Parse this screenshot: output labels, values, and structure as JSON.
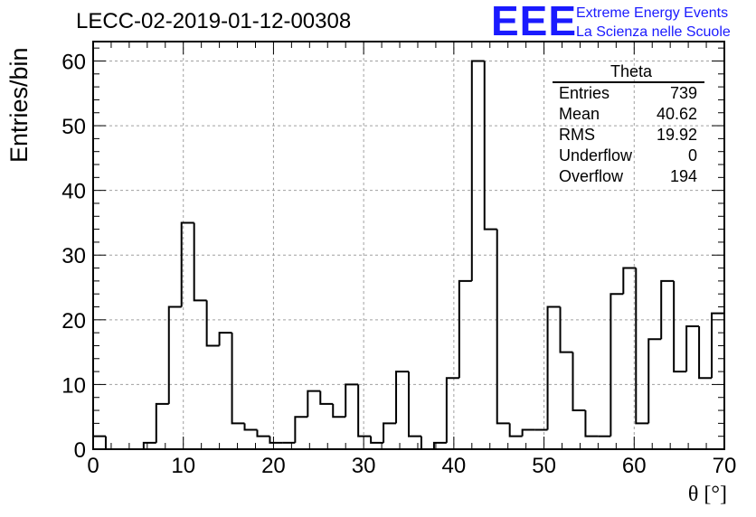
{
  "header": {
    "run_title": "LECC-02-2019-01-12-00308",
    "logo": "EEE",
    "logo_line1": "Extreme Energy Events",
    "logo_line2": "La Scienza nelle Scuole"
  },
  "stats_box": {
    "title": "Theta",
    "rows": [
      {
        "label": "Entries",
        "value": "739"
      },
      {
        "label": "Mean",
        "value": "40.62"
      },
      {
        "label": "RMS",
        "value": "19.92"
      },
      {
        "label": "Underflow",
        "value": "0"
      },
      {
        "label": "Overflow",
        "value": "194"
      }
    ]
  },
  "chart_data": {
    "type": "bar",
    "title": "LECC-02-2019-01-12-00308",
    "xlabel": "θ [°]",
    "ylabel": "Entries/bin",
    "xlim": [
      0,
      70
    ],
    "ylim": [
      0,
      63
    ],
    "grid": true,
    "legend": "top-right",
    "x_ticks": [
      "0",
      "10",
      "20",
      "30",
      "40",
      "50",
      "60",
      "70"
    ],
    "y_ticks": [
      "0",
      "10",
      "20",
      "30",
      "40",
      "50",
      "60"
    ],
    "bin_width": 1.4,
    "bin_edges_start": 0,
    "values": [
      2,
      0,
      0,
      0,
      1,
      7,
      22,
      35,
      23,
      16,
      18,
      4,
      3,
      2,
      1,
      1,
      5,
      9,
      7,
      5,
      10,
      2,
      1,
      4,
      12,
      2,
      0,
      1,
      11,
      26,
      60,
      34,
      4,
      2,
      3,
      3,
      22,
      15,
      6,
      2,
      2,
      24,
      28,
      4,
      17,
      26,
      12,
      19,
      11,
      21
    ],
    "line_color": "#000000",
    "grid_color": "#a0a0a0"
  }
}
